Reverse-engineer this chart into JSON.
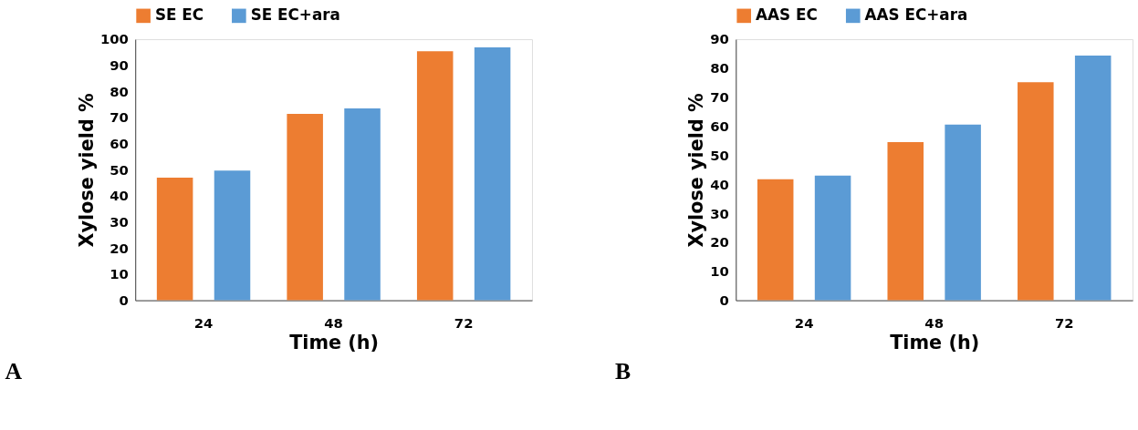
{
  "chart_data": [
    {
      "type": "bar",
      "title": "A",
      "xlabel": "Time (h)",
      "ylabel": "Xylose yield %",
      "categories": [
        "24",
        "48",
        "72"
      ],
      "ylim": [
        0,
        100
      ],
      "yticks": [
        0,
        10,
        20,
        30,
        40,
        50,
        60,
        70,
        80,
        90,
        100
      ],
      "grid": false,
      "legend": "top",
      "series": [
        {
          "name": "SE EC",
          "color": "#ed7d31",
          "values": [
            47,
            71.4,
            95.4
          ]
        },
        {
          "name": "SE  EC+ara",
          "color": "#5b9bd5",
          "values": [
            49.7,
            73.5,
            96.9
          ]
        }
      ]
    },
    {
      "type": "bar",
      "title": "B",
      "xlabel": "Time (h)",
      "ylabel": "Xylose  yield %",
      "categories": [
        "24",
        "48",
        "72"
      ],
      "ylim": [
        0,
        90
      ],
      "yticks": [
        0,
        10,
        20,
        30,
        40,
        50,
        60,
        70,
        80,
        90
      ],
      "grid": false,
      "legend": "top",
      "series": [
        {
          "name": "AAS EC",
          "color": "#ed7d31",
          "values": [
            41.7,
            54.5,
            75.2
          ]
        },
        {
          "name": "AAS  EC+ara",
          "color": "#5b9bd5",
          "values": [
            43,
            60.6,
            84.4
          ]
        }
      ]
    }
  ]
}
